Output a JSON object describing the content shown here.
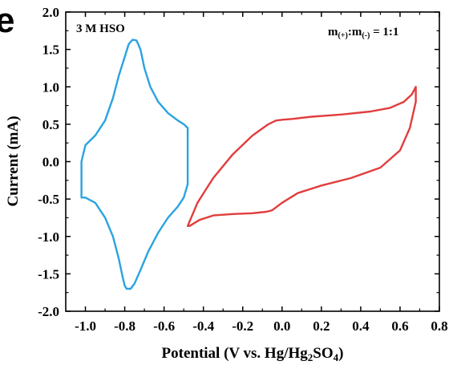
{
  "panel_letter": "e",
  "chart_data": {
    "type": "line",
    "title": "",
    "xlabel_parts": [
      "Potential (V vs. Hg/Hg",
      "2",
      "SO",
      "4",
      ")"
    ],
    "ylabel": "Current (mA)",
    "xlim": [
      -1.1,
      0.8
    ],
    "ylim": [
      -2.0,
      2.0
    ],
    "x_ticks": [
      -1.0,
      -0.8,
      -0.6,
      -0.4,
      -0.2,
      0.0,
      0.2,
      0.4,
      0.6,
      0.8
    ],
    "x_tick_labels": [
      "-1.0",
      "-0.8",
      "-0.6",
      "-0.4",
      "-0.2",
      "0.0",
      "0.2",
      "0.4",
      "0.6",
      "0.8"
    ],
    "y_ticks": [
      -2.0,
      -1.5,
      -1.0,
      -0.5,
      0.0,
      0.5,
      1.0,
      1.5,
      2.0
    ],
    "y_tick_labels": [
      "-2.0",
      "-1.5",
      "-1.0",
      "-0.5",
      "0.0",
      "0.5",
      "1.0",
      "1.5",
      "2.0"
    ],
    "grid": false,
    "annotations": {
      "electrolyte": "3 M HSO",
      "ratio_parts": [
        "m",
        "(+)",
        ":m",
        "(-)",
        " = 1:1"
      ]
    },
    "series": [
      {
        "color": "#29a3e0",
        "x": [
          -1.02,
          -1.02,
          -1.0,
          -0.95,
          -0.9,
          -0.86,
          -0.83,
          -0.8,
          -0.78,
          -0.76,
          -0.74,
          -0.72,
          -0.7,
          -0.67,
          -0.63,
          -0.58,
          -0.53,
          -0.5,
          -0.48,
          -0.48,
          -0.48,
          -0.5,
          -0.53,
          -0.58,
          -0.63,
          -0.68,
          -0.72,
          -0.75,
          -0.77,
          -0.79,
          -0.8,
          -0.81,
          -0.83,
          -0.86,
          -0.9,
          -0.95,
          -1.0,
          -1.02
        ],
        "y": [
          -0.48,
          0.0,
          0.22,
          0.35,
          0.55,
          0.85,
          1.15,
          1.4,
          1.57,
          1.63,
          1.62,
          1.5,
          1.25,
          1.0,
          0.8,
          0.65,
          0.55,
          0.5,
          0.45,
          0.0,
          -0.3,
          -0.48,
          -0.6,
          -0.75,
          -0.95,
          -1.2,
          -1.45,
          -1.63,
          -1.7,
          -1.7,
          -1.66,
          -1.55,
          -1.3,
          -1.0,
          -0.75,
          -0.55,
          -0.48,
          -0.48
        ]
      },
      {
        "color": "#e23d3d",
        "x": [
          -0.48,
          -0.43,
          -0.35,
          -0.25,
          -0.15,
          -0.07,
          -0.03,
          0.0,
          0.05,
          0.15,
          0.3,
          0.45,
          0.55,
          0.62,
          0.66,
          0.68,
          0.68,
          0.65,
          0.6,
          0.5,
          0.35,
          0.2,
          0.08,
          0.0,
          -0.05,
          -0.08,
          -0.15,
          -0.25,
          -0.35,
          -0.42,
          -0.47,
          -0.48
        ],
        "y": [
          -0.86,
          -0.55,
          -0.22,
          0.1,
          0.35,
          0.5,
          0.55,
          0.56,
          0.57,
          0.6,
          0.63,
          0.67,
          0.72,
          0.8,
          0.9,
          1.0,
          0.8,
          0.45,
          0.15,
          -0.08,
          -0.22,
          -0.32,
          -0.42,
          -0.55,
          -0.65,
          -0.67,
          -0.69,
          -0.7,
          -0.72,
          -0.78,
          -0.86,
          -0.86
        ]
      }
    ]
  }
}
